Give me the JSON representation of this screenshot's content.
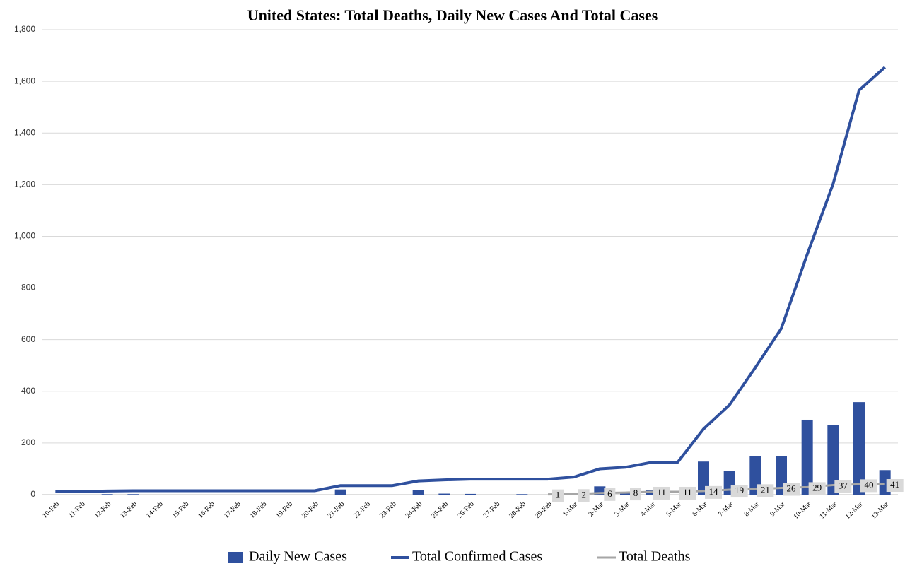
{
  "chart_data": {
    "type": "combo",
    "title": "United States: Total Deaths, Daily New Cases And Total Cases",
    "categories": [
      "10-Feb",
      "11-Feb",
      "12-Feb",
      "13-Feb",
      "14-Feb",
      "15-Feb",
      "16-Feb",
      "17-Feb",
      "18-Feb",
      "19-Feb",
      "20-Feb",
      "21-Feb",
      "22-Feb",
      "23-Feb",
      "24-Feb",
      "25-Feb",
      "26-Feb",
      "27-Feb",
      "28-Feb",
      "29-Feb",
      "1-Mar",
      "2-Mar",
      "3-Mar",
      "4-Mar",
      "5-Mar",
      "6-Mar",
      "7-Mar",
      "8-Mar",
      "9-Mar",
      "10-Mar",
      "11-Mar",
      "12-Mar",
      "13-Mar"
    ],
    "series": [
      {
        "name": "Daily New Cases",
        "type": "bar",
        "color": "#2f509e",
        "values": [
          0,
          0,
          2,
          2,
          0,
          0,
          0,
          0,
          0,
          0,
          0,
          20,
          0,
          0,
          18,
          4,
          3,
          0,
          2,
          0,
          8,
          32,
          6,
          19,
          0,
          128,
          92,
          150,
          148,
          290,
          270,
          358,
          95
        ]
      },
      {
        "name": "Total Confirmed Cases",
        "type": "line",
        "color": "#2f509e",
        "values": [
          12,
          12,
          14,
          15,
          15,
          15,
          15,
          15,
          15,
          15,
          15,
          35,
          35,
          35,
          53,
          57,
          60,
          60,
          60,
          60,
          68,
          100,
          106,
          125,
          125,
          254,
          347,
          492,
          643,
          930,
          1203,
          1565,
          1655
        ]
      },
      {
        "name": "Total Deaths",
        "type": "line",
        "color": "#a6a6a6",
        "values": [
          null,
          null,
          null,
          null,
          null,
          null,
          null,
          null,
          null,
          null,
          null,
          null,
          null,
          null,
          null,
          null,
          null,
          null,
          null,
          1,
          2,
          6,
          8,
          11,
          11,
          14,
          19,
          21,
          26,
          29,
          37,
          40,
          41
        ]
      }
    ],
    "ylim": [
      0,
      1800
    ],
    "yticks": [
      0,
      200,
      400,
      600,
      800,
      {
        "value": 1000,
        "label": "1,000"
      },
      {
        "value": 1200,
        "label": "1,200"
      },
      {
        "value": 1400,
        "label": "1,400"
      },
      {
        "value": 1600,
        "label": "1,600"
      },
      {
        "value": 1800,
        "label": "1,800"
      }
    ],
    "grid": true,
    "legend": "bottom"
  }
}
